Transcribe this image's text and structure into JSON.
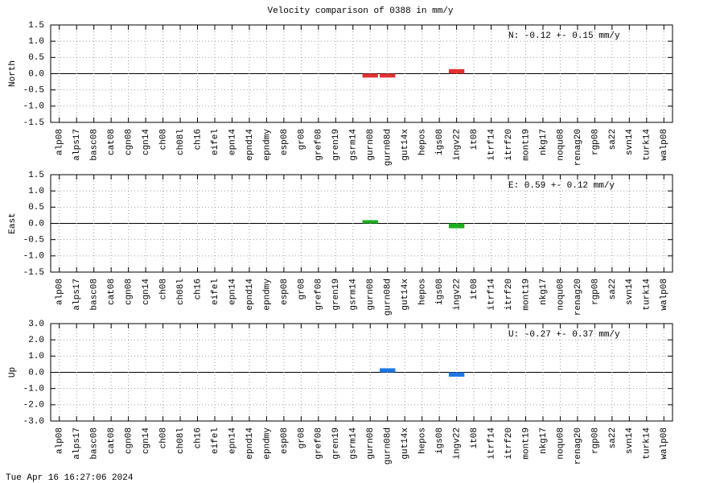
{
  "title": "Velocity comparison of 0388 in mm/y",
  "timestamp": "Tue Apr 16 16:27:06 2024",
  "chart_data": [
    {
      "type": "bar",
      "ylabel": "North",
      "annotation": "N:  -0.12 +-  0.15 mm/y",
      "color": "#e03232",
      "grid": true,
      "categories": [
        "alp08",
        "alps17",
        "basc08",
        "cat08",
        "cgn08",
        "cgn14",
        "ch08",
        "ch08l",
        "ch16",
        "eifel",
        "epn14",
        "epnd14",
        "epndmy",
        "esp08",
        "gr08",
        "gref08",
        "gren19",
        "gsrm14",
        "gurn08",
        "gurn08d",
        "gut14x",
        "hepos",
        "igs08",
        "ingv22",
        "it08",
        "itrf14",
        "itrf20",
        "mont19",
        "nkg17",
        "noqu08",
        "renag20",
        "rgp08",
        "sa22",
        "svn14",
        "turk14",
        "walp08"
      ],
      "values": [
        null,
        null,
        null,
        null,
        null,
        null,
        null,
        null,
        null,
        null,
        null,
        null,
        null,
        null,
        null,
        null,
        null,
        null,
        -0.12,
        -0.12,
        null,
        null,
        null,
        0.14,
        null,
        null,
        null,
        null,
        null,
        null,
        null,
        null,
        null,
        null,
        null,
        null
      ],
      "ylim": [
        -1.5,
        1.5
      ],
      "yticks": [
        -1.5,
        {
          "value": -1,
          "label": "-1.0"
        },
        -0.5,
        {
          "value": 0,
          "label": "0.0"
        },
        0.5,
        {
          "value": 1,
          "label": "1.0"
        },
        1.5
      ]
    },
    {
      "type": "bar",
      "ylabel": "East",
      "annotation": "E:   0.59 +-  0.12 mm/y",
      "color": "#1fae1f",
      "grid": true,
      "categories": [
        "alp08",
        "alps17",
        "basc08",
        "cat08",
        "cgn08",
        "cgn14",
        "ch08",
        "ch08l",
        "ch16",
        "eifel",
        "epn14",
        "epnd14",
        "epndmy",
        "esp08",
        "gr08",
        "gref08",
        "gren19",
        "gsrm14",
        "gurn08",
        "gurn08d",
        "gut14x",
        "hepos",
        "igs08",
        "ingv22",
        "it08",
        "itrf14",
        "itrf20",
        "mont19",
        "nkg17",
        "noqu08",
        "renag20",
        "rgp08",
        "sa22",
        "svn14",
        "turk14",
        "walp08"
      ],
      "values": [
        null,
        null,
        null,
        null,
        null,
        null,
        null,
        null,
        null,
        null,
        null,
        null,
        null,
        null,
        null,
        null,
        null,
        null,
        0.1,
        null,
        null,
        null,
        null,
        -0.15,
        null,
        null,
        null,
        null,
        null,
        null,
        null,
        null,
        null,
        null,
        null,
        null
      ],
      "ylim": [
        -1.5,
        1.5
      ],
      "yticks": [
        -1.5,
        {
          "value": -1,
          "label": "-1.0"
        },
        -0.5,
        {
          "value": 0,
          "label": "0.0"
        },
        0.5,
        {
          "value": 1,
          "label": "1.0"
        },
        1.5
      ]
    },
    {
      "type": "bar",
      "ylabel": "Up",
      "annotation": "U:  -0.27 +-  0.37 mm/y",
      "color": "#1e78e6",
      "grid": true,
      "categories": [
        "alp08",
        "alps17",
        "basc08",
        "cat08",
        "cgn08",
        "cgn14",
        "ch08",
        "ch08l",
        "ch16",
        "eifel",
        "epn14",
        "epnd14",
        "epndmy",
        "esp08",
        "gr08",
        "gref08",
        "gren19",
        "gsrm14",
        "gurn08",
        "gurn08d",
        "gut14x",
        "hepos",
        "igs08",
        "ingv22",
        "it08",
        "itrf14",
        "itrf20",
        "mont19",
        "nkg17",
        "noqu08",
        "renag20",
        "rgp08",
        "sa22",
        "svn14",
        "turk14",
        "walp08"
      ],
      "values": [
        null,
        null,
        null,
        null,
        null,
        null,
        null,
        null,
        null,
        null,
        null,
        null,
        null,
        null,
        null,
        null,
        null,
        null,
        null,
        0.25,
        null,
        null,
        null,
        -0.27,
        null,
        null,
        null,
        null,
        null,
        null,
        null,
        null,
        null,
        null,
        null,
        null
      ],
      "ylim": [
        -3,
        3
      ],
      "yticks": [
        {
          "value": -3,
          "label": "-3.0"
        },
        {
          "value": -2,
          "label": "-2.0"
        },
        {
          "value": -1,
          "label": "-1.0"
        },
        {
          "value": 0,
          "label": "0.0"
        },
        {
          "value": 1,
          "label": "1.0"
        },
        {
          "value": 2,
          "label": "2.0"
        },
        {
          "value": 3,
          "label": "3.0"
        }
      ]
    }
  ]
}
